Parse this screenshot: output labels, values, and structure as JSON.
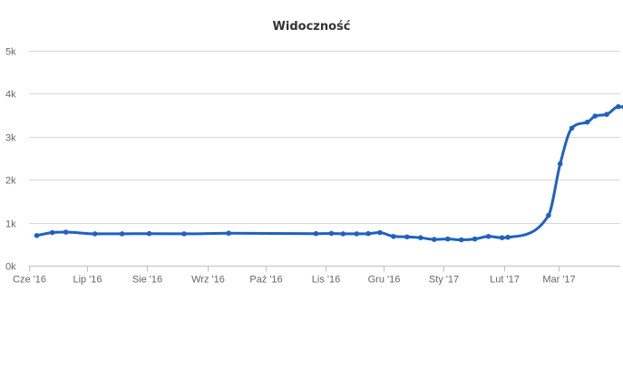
{
  "chart_data": {
    "type": "line",
    "title": "Widoczność",
    "xlabel": "",
    "ylabel": "",
    "ylim": [
      0,
      5000
    ],
    "y_ticks": [
      {
        "value": 0,
        "label": "0k"
      },
      {
        "value": 1000,
        "label": "1k"
      },
      {
        "value": 2000,
        "label": "2k"
      },
      {
        "value": 3000,
        "label": "3k"
      },
      {
        "value": 4000,
        "label": "4k"
      },
      {
        "value": 5000,
        "label": "5k"
      }
    ],
    "x_range": [
      "2016-06-01",
      "2017-04-02"
    ],
    "x_ticks": [
      {
        "date": "2016-06-01",
        "label": "Cze '16"
      },
      {
        "date": "2016-07-01",
        "label": "Lip '16"
      },
      {
        "date": "2016-08-01",
        "label": "Sie '16"
      },
      {
        "date": "2016-09-01",
        "label": "Wrz '16"
      },
      {
        "date": "2016-10-01",
        "label": "Paź '16"
      },
      {
        "date": "2016-11-01",
        "label": "Lis '16"
      },
      {
        "date": "2016-12-01",
        "label": "Gru '16"
      },
      {
        "date": "2017-01-01",
        "label": "Sty '17"
      },
      {
        "date": "2017-02-01",
        "label": "Lut '17"
      },
      {
        "date": "2017-03-01",
        "label": "Mar '17"
      }
    ],
    "grid": true,
    "legend": "none",
    "color": "#1f62c0",
    "series": [
      {
        "points": [
          {
            "x": "2016-06-05",
            "y": 700
          },
          {
            "x": "2016-06-13",
            "y": 770
          },
          {
            "x": "2016-06-20",
            "y": 780
          },
          {
            "x": "2016-07-05",
            "y": 740
          },
          {
            "x": "2016-07-19",
            "y": 740
          },
          {
            "x": "2016-08-02",
            "y": 745
          },
          {
            "x": "2016-08-20",
            "y": 740
          },
          {
            "x": "2016-09-12",
            "y": 755
          },
          {
            "x": "2016-10-27",
            "y": 745
          },
          {
            "x": "2016-11-04",
            "y": 750
          },
          {
            "x": "2016-11-10",
            "y": 740
          },
          {
            "x": "2016-11-17",
            "y": 740
          },
          {
            "x": "2016-11-23",
            "y": 745
          },
          {
            "x": "2016-11-29",
            "y": 770
          },
          {
            "x": "2016-12-06",
            "y": 680
          },
          {
            "x": "2016-12-13",
            "y": 670
          },
          {
            "x": "2016-12-20",
            "y": 650
          },
          {
            "x": "2016-12-27",
            "y": 610
          },
          {
            "x": "2017-01-03",
            "y": 620
          },
          {
            "x": "2017-01-10",
            "y": 600
          },
          {
            "x": "2017-01-17",
            "y": 620
          },
          {
            "x": "2017-01-24",
            "y": 680
          },
          {
            "x": "2017-01-31",
            "y": 650
          },
          {
            "x": "2017-02-03",
            "y": 660
          },
          {
            "x": "2017-02-24",
            "y": 1170
          },
          {
            "x": "2017-03-02",
            "y": 2370
          },
          {
            "x": "2017-03-08",
            "y": 3200
          },
          {
            "x": "2017-03-16",
            "y": 3340
          },
          {
            "x": "2017-03-20",
            "y": 3480
          },
          {
            "x": "2017-03-26",
            "y": 3520
          },
          {
            "x": "2017-04-01",
            "y": 3700
          },
          {
            "x": "2017-04-04",
            "y": 3690
          }
        ]
      }
    ]
  }
}
